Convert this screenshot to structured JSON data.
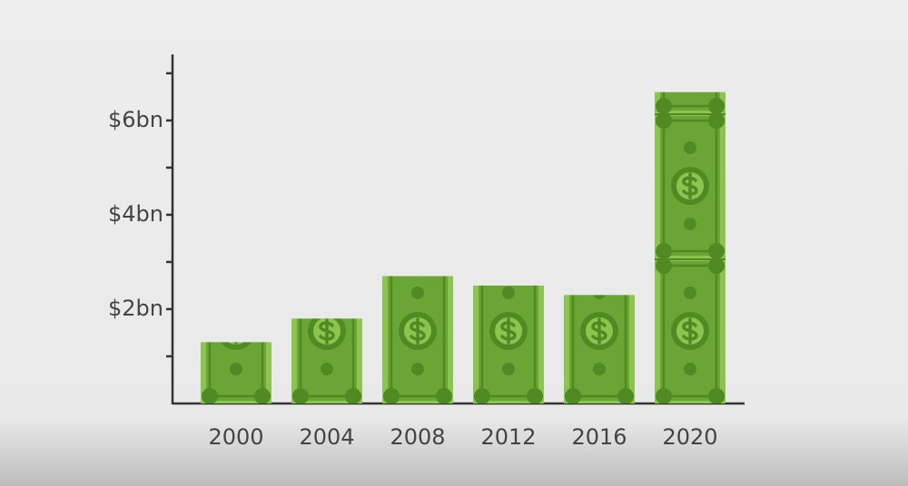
{
  "chart_data": {
    "type": "bar",
    "categories": [
      "2000",
      "2004",
      "2008",
      "2012",
      "2016",
      "2020"
    ],
    "values": [
      1.3,
      1.8,
      2.7,
      2.5,
      2.3,
      6.6
    ],
    "color": "#6aa536",
    "ylim": [
      0,
      7.4
    ],
    "yticks": [
      {
        "value": 2,
        "label": "$2bn"
      },
      {
        "value": 4,
        "label": "$4bn"
      },
      {
        "value": 6,
        "label": "$6bn"
      }
    ],
    "minor_yticks": [
      1,
      3,
      5,
      7
    ]
  }
}
